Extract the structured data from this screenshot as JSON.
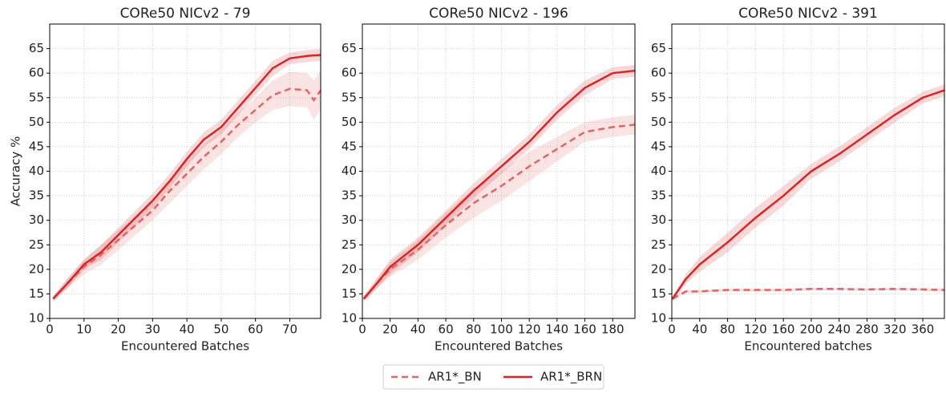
{
  "chart_data": [
    {
      "type": "line",
      "title": "CORe50 NICv2 - 79",
      "xlabel": "Encountered Batches",
      "ylabel": "Accuracy %",
      "x": [
        1,
        5,
        10,
        15,
        20,
        25,
        30,
        35,
        40,
        45,
        50,
        55,
        60,
        65,
        70,
        75,
        77,
        79
      ],
      "xlim": [
        0,
        79
      ],
      "xticks": [
        0,
        10,
        20,
        30,
        40,
        50,
        60,
        70
      ],
      "ylim": [
        10,
        70
      ],
      "yticks": [
        10,
        15,
        20,
        25,
        30,
        35,
        40,
        45,
        50,
        55,
        60,
        65
      ],
      "grid": true,
      "series": [
        {
          "name": "AR1*_BN",
          "color": "#e06666",
          "linestyle": "dashed",
          "values": [
            14,
            17,
            20.5,
            23,
            26,
            29,
            32,
            36,
            39.5,
            43,
            46,
            49.5,
            52.5,
            55.5,
            56.8,
            56.5,
            54.5,
            56.5
          ],
          "spread": [
            0.5,
            1,
            1.5,
            2,
            2,
            2,
            2,
            2.5,
            2.5,
            2.5,
            2.5,
            2.5,
            2.5,
            3,
            3.5,
            3.5,
            4,
            4
          ]
        },
        {
          "name": "AR1*_BRN",
          "color": "#d62728",
          "linestyle": "solid",
          "values": [
            14,
            17,
            21,
            23.5,
            27,
            30.5,
            34,
            38,
            42.5,
            46.5,
            49,
            53,
            57,
            61,
            63,
            63.5,
            63.6,
            63.7
          ],
          "spread": [
            0.5,
            1,
            1,
            1.5,
            1.5,
            1.5,
            1.5,
            1.5,
            1.5,
            1.5,
            1.5,
            1.5,
            1.5,
            1.5,
            1.2,
            1.2,
            1.2,
            1.2
          ]
        }
      ]
    },
    {
      "type": "line",
      "title": "CORe50 NICv2 - 196",
      "xlabel": "Encountered Batches",
      "x": [
        1,
        10,
        20,
        40,
        60,
        80,
        100,
        120,
        140,
        160,
        180,
        196
      ],
      "xlim": [
        0,
        196
      ],
      "xticks": [
        0,
        20,
        40,
        60,
        80,
        100,
        120,
        140,
        160,
        180
      ],
      "ylim": [
        10,
        70
      ],
      "yticks": [
        10,
        15,
        20,
        25,
        30,
        35,
        40,
        45,
        50,
        55,
        60,
        65
      ],
      "grid": true,
      "series": [
        {
          "name": "AR1*_BN",
          "color": "#e06666",
          "linestyle": "dashed",
          "values": [
            14,
            17,
            20,
            24,
            29,
            33.5,
            37,
            41,
            44.5,
            48,
            49,
            49.5
          ],
          "spread": [
            0.5,
            1,
            1.5,
            2,
            2.5,
            3,
            3,
            3,
            2.5,
            2,
            2,
            2
          ]
        },
        {
          "name": "AR1*_BRN",
          "color": "#d62728",
          "linestyle": "solid",
          "values": [
            14,
            17,
            20.5,
            25,
            30.5,
            36,
            41,
            46,
            52,
            57,
            60,
            60.5
          ],
          "spread": [
            0.5,
            1,
            1.5,
            1.5,
            1.5,
            1.5,
            1.5,
            1.5,
            1.5,
            1.5,
            1.2,
            1.2
          ]
        }
      ]
    },
    {
      "type": "line",
      "title": "CORe50 NICv2 - 391",
      "xlabel": "Encountered batches",
      "x": [
        1,
        20,
        40,
        80,
        120,
        160,
        200,
        240,
        280,
        320,
        360,
        391
      ],
      "xlim": [
        0,
        391
      ],
      "xticks": [
        0,
        40,
        80,
        120,
        160,
        200,
        240,
        280,
        320,
        360
      ],
      "ylim": [
        10,
        70
      ],
      "yticks": [
        10,
        15,
        20,
        25,
        30,
        35,
        40,
        45,
        50,
        55,
        60,
        65
      ],
      "grid": true,
      "series": [
        {
          "name": "AR1*_BN",
          "color": "#e06666",
          "linestyle": "dashed",
          "values": [
            14,
            15.5,
            15.5,
            15.8,
            15.8,
            15.8,
            16,
            16,
            15.9,
            16,
            15.9,
            15.8
          ],
          "spread": [
            0.3,
            0.3,
            0.3,
            0.3,
            0.3,
            0.3,
            0.3,
            0.3,
            0.3,
            0.3,
            0.3,
            0.3
          ]
        },
        {
          "name": "AR1*_BRN",
          "color": "#d62728",
          "linestyle": "solid",
          "values": [
            14,
            18,
            21,
            25.5,
            30.5,
            35,
            40,
            43.5,
            47.5,
            51.5,
            55,
            56.5
          ],
          "spread": [
            0.5,
            1,
            1.5,
            2,
            2,
            2,
            1.5,
            1.5,
            1.5,
            1.5,
            1.2,
            1.2
          ]
        }
      ]
    }
  ]
}
